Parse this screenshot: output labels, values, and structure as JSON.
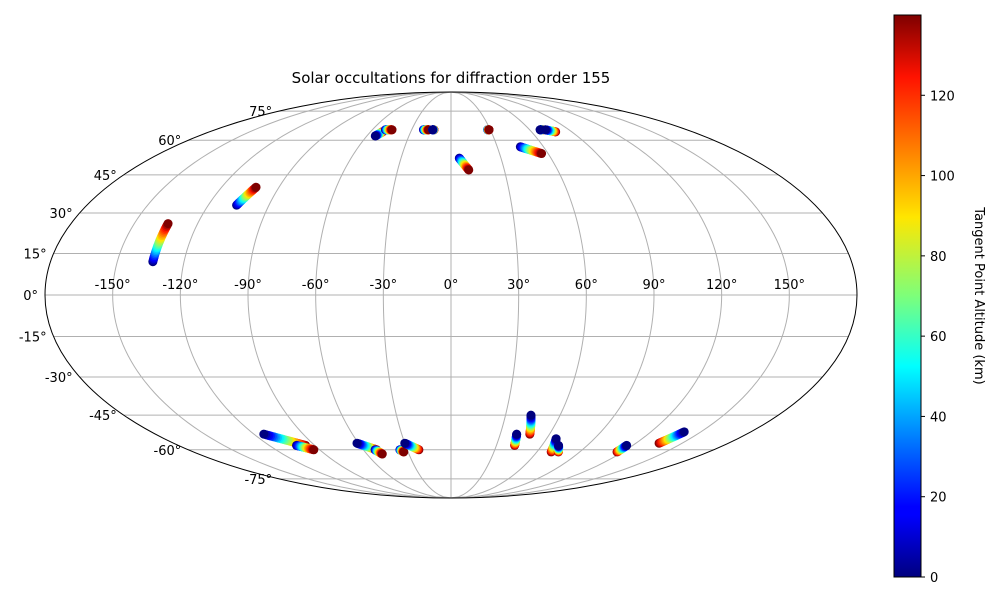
{
  "chart_data": {
    "type": "scatter",
    "projection": "mollweide",
    "title": "Solar occultations for diffraction order 155",
    "grid": true,
    "lon_ticks": [
      "-150°",
      "-120°",
      "-90°",
      "-60°",
      "-30°",
      "0°",
      "30°",
      "60°",
      "90°",
      "120°",
      "150°"
    ],
    "lat_ticks": [
      "75°",
      "60°",
      "45°",
      "30°",
      "15°",
      "0°",
      "-15°",
      "-30°",
      "-45°",
      "-60°",
      "-75°"
    ],
    "colorbar": {
      "label": "Tangent Point Altitude (km)",
      "colormap": "jet",
      "range": [
        0,
        140
      ],
      "ticks": [
        "0",
        "20",
        "40",
        "60",
        "80",
        "100",
        "120"
      ]
    },
    "tracks": [
      {
        "start": [
          -134,
          12
        ],
        "end": [
          -134,
          26
        ],
        "alt": [
          0,
          140
        ],
        "dir": "up"
      },
      {
        "start": [
          -106,
          33
        ],
        "end": [
          -102,
          40
        ],
        "alt": [
          0,
          140
        ],
        "dir": "up"
      },
      {
        "start": [
          -54,
          62
        ],
        "end": [
          -51,
          64
        ],
        "alt": [
          0,
          140
        ],
        "dir": "down"
      },
      {
        "start": [
          -50,
          65
        ],
        "end": [
          -45,
          65
        ],
        "alt": [
          0,
          140
        ],
        "dir": "up"
      },
      {
        "start": [
          -21,
          65
        ],
        "end": [
          -17,
          65
        ],
        "alt": [
          0,
          140
        ],
        "dir": "up"
      },
      {
        "start": [
          -14,
          65
        ],
        "end": [
          -13,
          65
        ],
        "alt": [
          0,
          140
        ],
        "dir": "down"
      },
      {
        "start": [
          5,
          52
        ],
        "end": [
          10,
          47
        ],
        "alt": [
          0,
          140
        ],
        "dir": "up"
      },
      {
        "start": [
          28,
          65
        ],
        "end": [
          29,
          65
        ],
        "alt": [
          0,
          140
        ],
        "dir": "up"
      },
      {
        "start": [
          45,
          57
        ],
        "end": [
          56,
          54
        ],
        "alt": [
          0,
          140
        ],
        "dir": "up"
      },
      {
        "start": [
          68,
          65
        ],
        "end": [
          70,
          65
        ],
        "alt": [
          0,
          140
        ],
        "dir": "down"
      },
      {
        "start": [
          72,
          65
        ],
        "end": [
          78,
          64
        ],
        "alt": [
          0,
          140
        ],
        "dir": "down"
      },
      {
        "start": [
          -114,
          -53
        ],
        "end": [
          -96,
          -58
        ],
        "alt": [
          0,
          140
        ],
        "dir": "down"
      },
      {
        "start": [
          -102,
          -58
        ],
        "end": [
          -94,
          -60
        ],
        "alt": [
          0,
          140
        ],
        "dir": "up"
      },
      {
        "start": [
          -61,
          -57
        ],
        "end": [
          -51,
          -60
        ],
        "alt": [
          0,
          140
        ],
        "dir": "down"
      },
      {
        "start": [
          -52,
          -60
        ],
        "end": [
          -49,
          -62
        ],
        "alt": [
          0,
          140
        ],
        "dir": "up"
      },
      {
        "start": [
          -35,
          -60
        ],
        "end": [
          -33,
          -61
        ],
        "alt": [
          0,
          140
        ],
        "dir": "up"
      },
      {
        "start": [
          -30,
          -57
        ],
        "end": [
          -22,
          -60
        ],
        "alt": [
          0,
          140
        ],
        "dir": "down"
      },
      {
        "start": [
          40,
          -53
        ],
        "end": [
          42,
          -58
        ],
        "alt": [
          0,
          140
        ],
        "dir": "down"
      },
      {
        "start": [
          44,
          -45
        ],
        "end": [
          48,
          -53
        ],
        "alt": [
          0,
          140
        ],
        "dir": "down"
      },
      {
        "start": [
          66,
          -55
        ],
        "end": [
          70,
          -61
        ],
        "alt": [
          0,
          140
        ],
        "dir": "down"
      },
      {
        "start": [
          71,
          -58
        ],
        "end": [
          75,
          -61
        ],
        "alt": [
          0,
          140
        ],
        "dir": "down"
      },
      {
        "start": [
          116,
          -58
        ],
        "end": [
          116,
          -61
        ],
        "alt": [
          0,
          140
        ],
        "dir": "down"
      },
      {
        "start": [
          140,
          -52
        ],
        "end": [
          135,
          -57
        ],
        "alt": [
          0,
          140
        ],
        "dir": "down"
      }
    ]
  }
}
